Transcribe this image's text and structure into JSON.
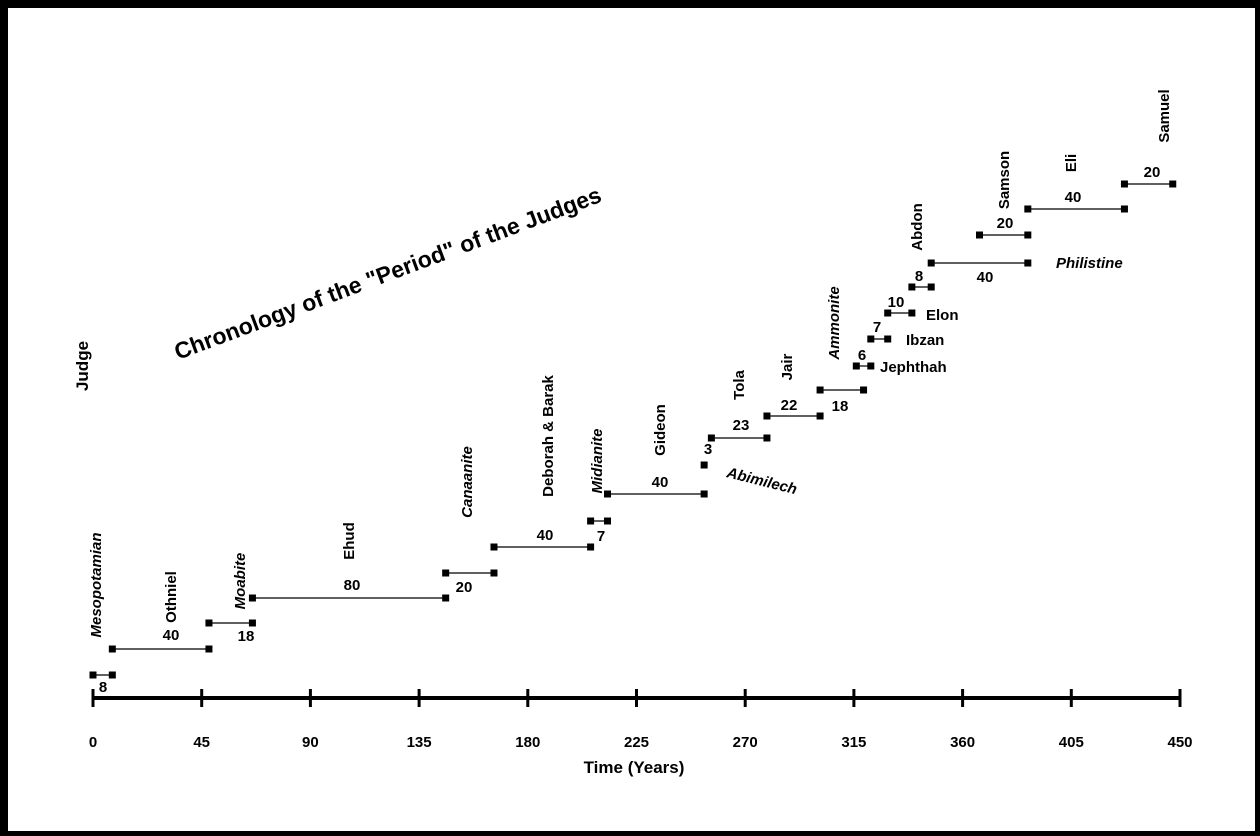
{
  "chart_data": {
    "type": "timeline",
    "title": "Chronology of the \"Period\" of the Judges",
    "xlabel": "Time (Years)",
    "ylabel": "Judge",
    "xlim": [
      0,
      450
    ],
    "xticks": [
      "0",
      "45",
      "90",
      "135",
      "180",
      "225",
      "270",
      "315",
      "360",
      "405",
      "450"
    ],
    "segments": [
      {
        "label": "Mesopotamian",
        "kind": "oppression",
        "start": 0,
        "end": 8,
        "years": "8"
      },
      {
        "label": "Othniel",
        "kind": "judge",
        "start": 8,
        "end": 48,
        "years": "40"
      },
      {
        "label": "Moabite",
        "kind": "oppression",
        "start": 48,
        "end": 66,
        "years": "18"
      },
      {
        "label": "Ehud",
        "kind": "judge",
        "start": 66,
        "end": 146,
        "years": "80"
      },
      {
        "label": "Canaanite",
        "kind": "oppression",
        "start": 146,
        "end": 166,
        "years": "20"
      },
      {
        "label": "Deborah & Barak",
        "kind": "judge",
        "start": 166,
        "end": 206,
        "years": "40"
      },
      {
        "label": "Midianite",
        "kind": "oppression",
        "start": 206,
        "end": 213,
        "years": "7"
      },
      {
        "label": "Gideon",
        "kind": "judge",
        "start": 213,
        "end": 253,
        "years": "40"
      },
      {
        "label": "Abimilech",
        "kind": "judge",
        "start": 253,
        "end": 256,
        "years": "3"
      },
      {
        "label": "Tola",
        "kind": "judge",
        "start": 256,
        "end": 279,
        "years": "23"
      },
      {
        "label": "Jair",
        "kind": "judge",
        "start": 279,
        "end": 301,
        "years": "22"
      },
      {
        "label": "Ammonite",
        "kind": "oppression",
        "start": 301,
        "end": 319,
        "years": "18"
      },
      {
        "label": "Jephthah",
        "kind": "judge",
        "start": 316,
        "end": 322,
        "years": "6"
      },
      {
        "label": "Ibzan",
        "kind": "judge",
        "start": 322,
        "end": 329,
        "years": "7"
      },
      {
        "label": "Elon",
        "kind": "judge",
        "start": 329,
        "end": 339,
        "years": "10"
      },
      {
        "label": "Abdon",
        "kind": "judge",
        "start": 339,
        "end": 347,
        "years": "8"
      },
      {
        "label": "Philistine",
        "kind": "oppression",
        "start": 347,
        "end": 387,
        "years": "40"
      },
      {
        "label": "Samson",
        "kind": "judge",
        "start": 367,
        "end": 387,
        "years": "20"
      },
      {
        "label": "Eli",
        "kind": "judge",
        "start": 387,
        "end": 427,
        "years": "40"
      },
      {
        "label": "Samuel",
        "kind": "judge",
        "start": 427,
        "end": 447,
        "years": "20"
      }
    ]
  }
}
